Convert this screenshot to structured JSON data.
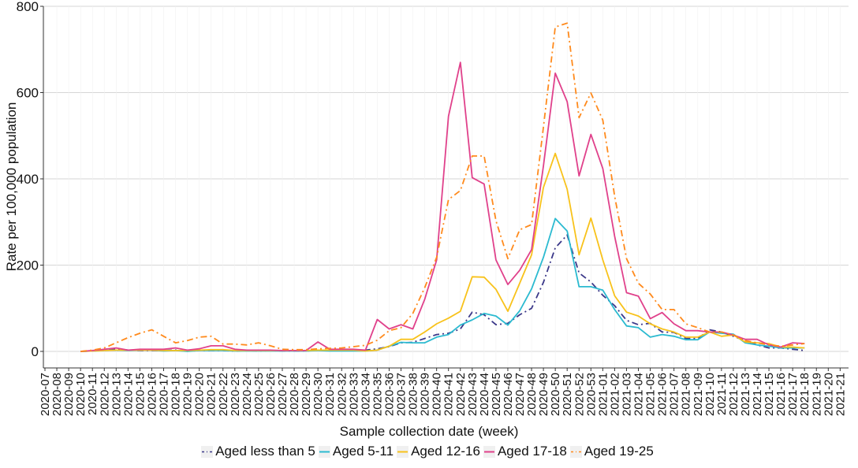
{
  "chart_data": {
    "type": "line",
    "title": "",
    "xlabel": "Sample collection date (week)",
    "ylabel": "Rate per 100,000 population",
    "ylim": [
      0,
      800
    ],
    "y_ticks": [
      "0",
      "200",
      "400",
      "600",
      "800"
    ],
    "y_tick_values": [
      0,
      200,
      400,
      600,
      800
    ],
    "grid": "horizontal",
    "legend_position": "bottom",
    "x_ticks": [
      "2020-07",
      "2020-08",
      "2020-09",
      "2020-10",
      "2020-11",
      "2020-12",
      "2020-13",
      "2020-14",
      "2020-15",
      "2020-16",
      "2020-17",
      "2020-18",
      "2020-19",
      "2020-20",
      "2020-21",
      "2020-22",
      "2020-23",
      "2020-24",
      "2020-25",
      "2020-26",
      "2020-27",
      "2020-28",
      "2020-29",
      "2020-30",
      "2020-31",
      "2020-32",
      "2020-33",
      "2020-34",
      "2020-35",
      "2020-36",
      "2020-37",
      "2020-38",
      "2020-39",
      "2020-40",
      "2020-41",
      "2020-42",
      "2020-43",
      "2020-44",
      "2020-45",
      "2020-46",
      "2020-47",
      "2020-48",
      "2020-49",
      "2020-50",
      "2020-51",
      "2020-52",
      "2020-53",
      "2021-01",
      "2021-02",
      "2021-03",
      "2021-04",
      "2021-05",
      "2021-06",
      "2021-07",
      "2021-08",
      "2021-09",
      "2021-10",
      "2021-11",
      "2021-12",
      "2021-13",
      "2021-14",
      "2021-15",
      "2021-16",
      "2021-17",
      "2021-18",
      "2021-19",
      "2021-20",
      "2021-21"
    ],
    "x": [
      "2020-10",
      "2020-11",
      "2020-12",
      "2020-13",
      "2020-14",
      "2020-15",
      "2020-16",
      "2020-17",
      "2020-18",
      "2020-19",
      "2020-20",
      "2020-21",
      "2020-22",
      "2020-23",
      "2020-24",
      "2020-25",
      "2020-26",
      "2020-27",
      "2020-28",
      "2020-29",
      "2020-30",
      "2020-31",
      "2020-32",
      "2020-33",
      "2020-34",
      "2020-35",
      "2020-36",
      "2020-37",
      "2020-38",
      "2020-39",
      "2020-40",
      "2020-41",
      "2020-42",
      "2020-43",
      "2020-44",
      "2020-45",
      "2020-46",
      "2020-47",
      "2020-48",
      "2020-49",
      "2020-50",
      "2020-51",
      "2020-52",
      "2020-53",
      "2021-01",
      "2021-02",
      "2021-03",
      "2021-04",
      "2021-05",
      "2021-06",
      "2021-07",
      "2021-08",
      "2021-09",
      "2021-10",
      "2021-11",
      "2021-12",
      "2021-13",
      "2021-14",
      "2021-15",
      "2021-16",
      "2021-17",
      "2021-18"
    ],
    "series": [
      {
        "name": "Aged less than 5",
        "color": "#3b3889",
        "dash": "dashdot",
        "values": [
          0,
          1,
          3,
          6,
          3,
          2,
          2,
          2,
          3,
          1,
          2,
          2,
          2,
          1,
          2,
          1,
          2,
          1,
          1,
          1,
          3,
          2,
          2,
          2,
          3,
          6,
          11,
          20,
          21,
          30,
          39,
          42,
          52,
          91,
          85,
          62,
          65,
          85,
          100,
          160,
          240,
          270,
          182,
          161,
          130,
          106,
          72,
          62,
          65,
          45,
          44,
          30,
          30,
          50,
          45,
          35,
          25,
          15,
          8,
          8,
          5,
          2
        ]
      },
      {
        "name": "Aged 5-11",
        "color": "#2bbad0",
        "dash": "solid",
        "values": [
          0,
          1,
          2,
          3,
          2,
          3,
          3,
          1,
          2,
          0,
          2,
          2,
          2,
          1,
          1,
          1,
          1,
          1,
          1,
          1,
          2,
          1,
          1,
          1,
          1,
          3,
          12,
          21,
          20,
          20,
          33,
          39,
          61,
          73,
          88,
          82,
          61,
          94,
          145,
          218,
          308,
          279,
          150,
          150,
          142,
          97,
          59,
          55,
          33,
          39,
          35,
          27,
          27,
          45,
          42,
          40,
          20,
          15,
          12,
          8,
          8,
          8
        ]
      },
      {
        "name": "Aged 12-16",
        "color": "#f8c21b",
        "dash": "solid",
        "values": [
          0,
          1,
          2,
          3,
          3,
          3,
          3,
          2,
          2,
          2,
          3,
          4,
          4,
          2,
          2,
          2,
          2,
          2,
          2,
          2,
          3,
          3,
          3,
          3,
          1,
          3,
          12,
          28,
          28,
          45,
          64,
          77,
          93,
          173,
          172,
          144,
          93,
          158,
          224,
          380,
          459,
          376,
          224,
          309,
          212,
          129,
          91,
          82,
          64,
          52,
          45,
          33,
          33,
          45,
          35,
          38,
          22,
          20,
          18,
          10,
          10,
          8
        ]
      },
      {
        "name": "Aged 17-18",
        "color": "#e0418b",
        "dash": "solid",
        "values": [
          0,
          2,
          5,
          8,
          3,
          5,
          5,
          5,
          8,
          3,
          6,
          13,
          13,
          5,
          3,
          3,
          3,
          2,
          2,
          2,
          22,
          5,
          5,
          5,
          3,
          74,
          52,
          62,
          52,
          121,
          212,
          545,
          670,
          403,
          388,
          212,
          155,
          188,
          236,
          430,
          645,
          579,
          407,
          503,
          424,
          267,
          136,
          128,
          76,
          90,
          64,
          48,
          48,
          45,
          45,
          38,
          28,
          28,
          15,
          10,
          20,
          18
        ]
      },
      {
        "name": "Aged 19-25",
        "color": "#ff8a1c",
        "dash": "dashdot",
        "values": [
          0,
          3,
          8,
          20,
          32,
          42,
          50,
          35,
          20,
          25,
          33,
          35,
          17,
          17,
          15,
          20,
          13,
          5,
          4,
          4,
          6,
          7,
          8,
          11,
          14,
          26,
          48,
          55,
          88,
          148,
          218,
          352,
          373,
          453,
          453,
          303,
          215,
          282,
          294,
          520,
          752,
          761,
          542,
          599,
          536,
          360,
          215,
          158,
          133,
          97,
          97,
          64,
          55,
          45,
          45,
          38,
          25,
          20,
          15,
          12,
          15,
          18
        ]
      }
    ]
  }
}
